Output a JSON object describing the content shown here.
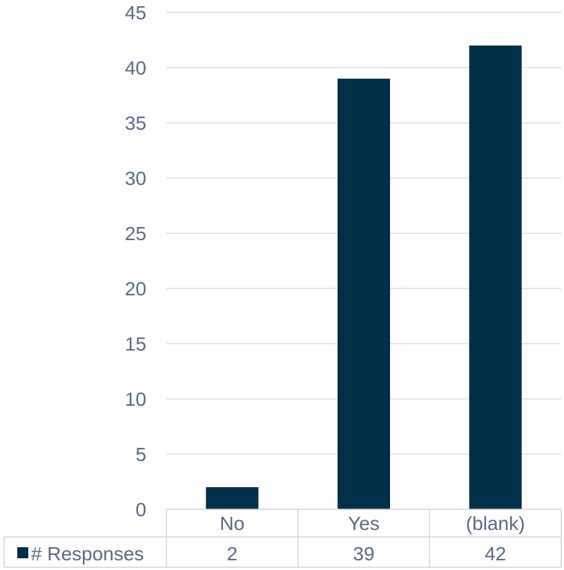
{
  "chart_data": {
    "type": "bar",
    "categories": [
      "No",
      "Yes",
      "(blank)"
    ],
    "series": [
      {
        "name": "# Responses",
        "values": [
          2,
          39,
          42
        ]
      }
    ],
    "title": "",
    "xlabel": "",
    "ylabel": "",
    "ylim": [
      0,
      45
    ],
    "yticks": [
      0,
      5,
      10,
      15,
      20,
      25,
      30,
      35,
      40,
      45
    ],
    "grid": true,
    "legend": "data-table-left",
    "data_table": true
  },
  "colors": {
    "bar": "#002f4a",
    "axis_text": "#5a6a85",
    "grid": "#d9dde6",
    "table_border": "#d0d4dc"
  }
}
